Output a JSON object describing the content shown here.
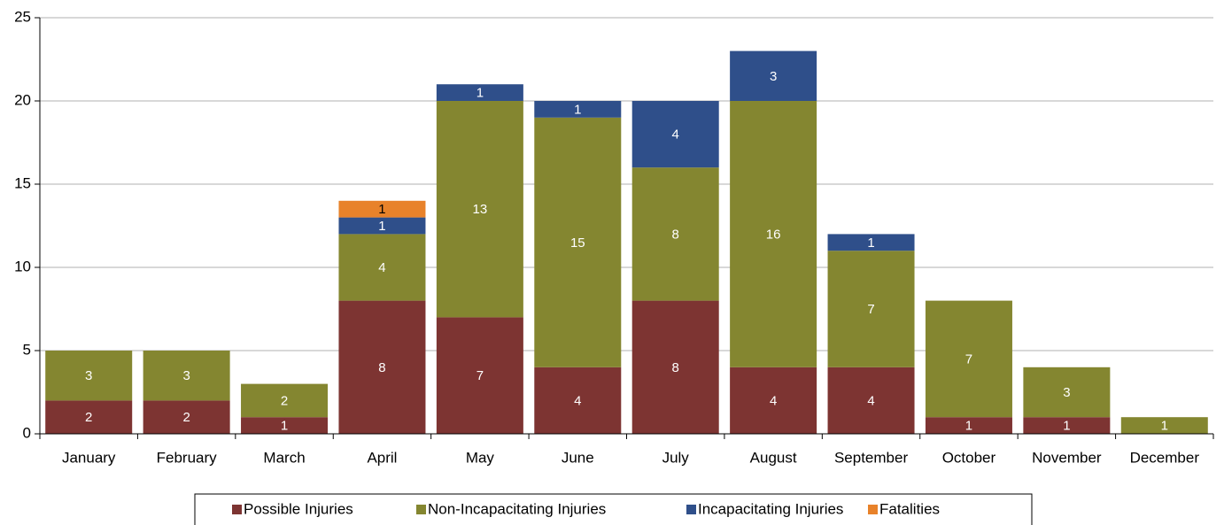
{
  "chart_data": {
    "type": "stacked_bar",
    "categories": [
      "January",
      "February",
      "March",
      "April",
      "May",
      "June",
      "July",
      "August",
      "September",
      "October",
      "November",
      "December"
    ],
    "series": [
      {
        "name": "Possible Injuries",
        "color": "#7d3432",
        "values": [
          2,
          2,
          1,
          8,
          7,
          4,
          8,
          4,
          4,
          1,
          1,
          null
        ]
      },
      {
        "name": "Non-Incapacitating Injuries",
        "color": "#848630",
        "values": [
          3,
          3,
          2,
          4,
          13,
          15,
          8,
          16,
          7,
          7,
          3,
          1
        ]
      },
      {
        "name": "Incapacitating Injuries",
        "color": "#2f4f8a",
        "values": [
          null,
          null,
          null,
          1,
          1,
          1,
          4,
          3,
          1,
          null,
          null,
          null
        ]
      },
      {
        "name": "Fatalities",
        "color": "#e8822a",
        "values": [
          null,
          null,
          null,
          1,
          null,
          null,
          null,
          null,
          null,
          null,
          null,
          null
        ]
      }
    ],
    "ylim": [
      0,
      25
    ],
    "yticks": [
      0,
      5,
      10,
      15,
      20,
      25
    ],
    "grid": true,
    "legend": "bottom"
  }
}
